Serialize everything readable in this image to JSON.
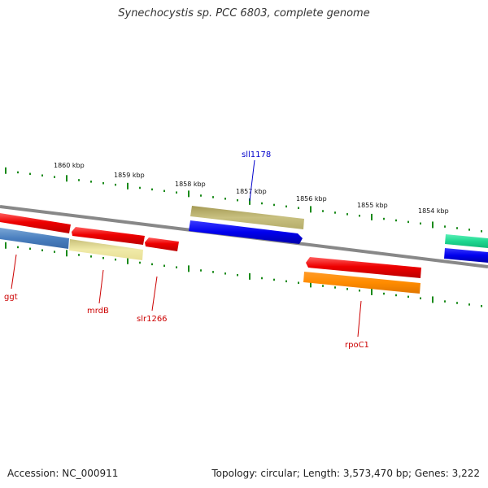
{
  "title": "Synechocystis sp. PCC 6803, complete genome",
  "footer": {
    "accession": "Accession: NC_000911",
    "summary": "Topology: circular; Length: 3,573,470 bp; Genes: 3,222"
  },
  "colors": {
    "backbone": "#888888",
    "ticks": "#1a8a1a",
    "forward_label": "#0000cc",
    "reverse_label": "#cc0000"
  },
  "scale_ticks": [
    {
      "label": "1860 kbp"
    },
    {
      "label": "1859 kbp"
    },
    {
      "label": "1858 kbp"
    },
    {
      "label": "1857 kbp"
    },
    {
      "label": "1856 kbp"
    },
    {
      "label": "1855 kbp"
    },
    {
      "label": "1854 kbp"
    }
  ],
  "gene_labels": [
    {
      "name": "sll1178",
      "strand": "forward"
    },
    {
      "name": "ggt",
      "strand": "reverse"
    },
    {
      "name": "mrdB",
      "strand": "reverse"
    },
    {
      "name": "slr1266",
      "strand": "reverse"
    },
    {
      "name": "rpoC1",
      "strand": "reverse"
    }
  ]
}
